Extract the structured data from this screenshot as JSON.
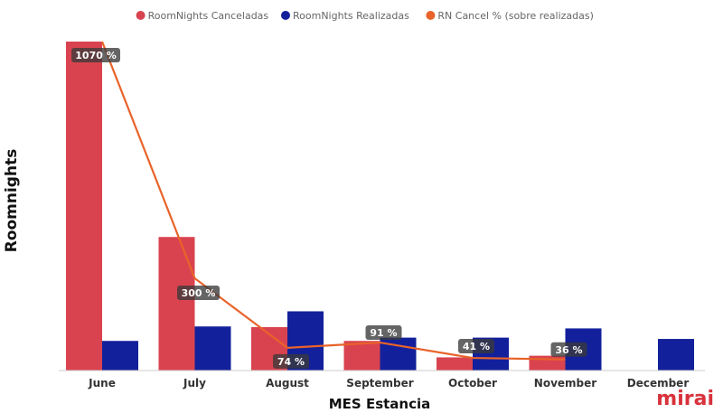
{
  "chart_data": {
    "type": "bar",
    "title": "",
    "xlabel": "MES Estancia",
    "ylabel": "Roomnights",
    "categories": [
      "June",
      "July",
      "August",
      "September",
      "October",
      "November",
      "December"
    ],
    "bar_ylim": [
      0,
      1000
    ],
    "line_ylim": [
      0,
      1070
    ],
    "series": [
      {
        "name": "RoomNights Canceladas",
        "kind": "bar",
        "color": "#d9434f",
        "values": [
          1000,
          406,
          132,
          90,
          40,
          45,
          null
        ]
      },
      {
        "name": "RoomNights Realizadas",
        "kind": "bar",
        "color": "#13209b",
        "values": [
          90,
          134,
          180,
          100,
          100,
          128,
          96
        ]
      },
      {
        "name": "RN Cancel % (sobre realizadas)",
        "kind": "line",
        "color": "#e8632a",
        "values": [
          1070,
          300,
          74,
          91,
          41,
          36,
          null
        ],
        "labels": [
          "1070 %",
          "300 %",
          "74 %",
          "91 %",
          "41 %",
          "36 %",
          ""
        ]
      }
    ],
    "legend_position": "top-center",
    "grid": false
  },
  "brand": {
    "logo_text": "mirai"
  }
}
